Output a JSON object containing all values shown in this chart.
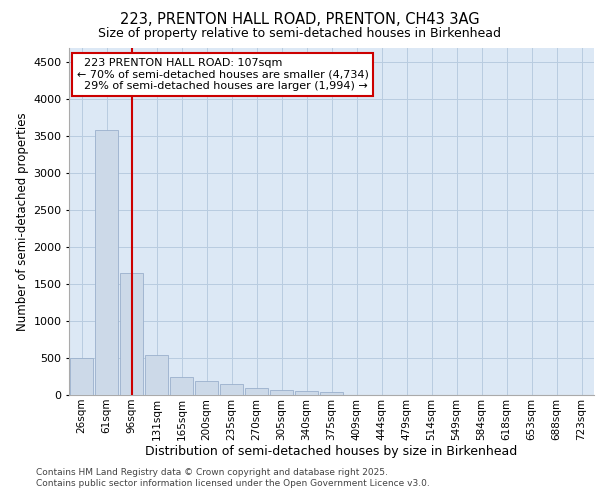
{
  "title_line1": "223, PRENTON HALL ROAD, PRENTON, CH43 3AG",
  "title_line2": "Size of property relative to semi-detached houses in Birkenhead",
  "xlabel": "Distribution of semi-detached houses by size in Birkenhead",
  "ylabel": "Number of semi-detached properties",
  "property_label": "223 PRENTON HALL ROAD: 107sqm",
  "pct_smaller": 70,
  "pct_larger": 29,
  "count_smaller": 4734,
  "count_larger": 1994,
  "bar_color": "#ccd9e8",
  "bar_edge_color": "#9ab0cc",
  "vline_color": "#cc0000",
  "annotation_box_edge_color": "#cc0000",
  "plot_bg_color": "#dce8f5",
  "fig_bg_color": "#ffffff",
  "grid_color": "#b8cce0",
  "categories": [
    "26sqm",
    "61sqm",
    "96sqm",
    "131sqm",
    "165sqm",
    "200sqm",
    "235sqm",
    "270sqm",
    "305sqm",
    "340sqm",
    "375sqm",
    "409sqm",
    "444sqm",
    "479sqm",
    "514sqm",
    "549sqm",
    "584sqm",
    "618sqm",
    "653sqm",
    "688sqm",
    "723sqm"
  ],
  "values": [
    500,
    3580,
    1650,
    540,
    240,
    190,
    150,
    95,
    65,
    55,
    40,
    0,
    0,
    0,
    0,
    0,
    0,
    0,
    0,
    0,
    0
  ],
  "vline_x_idx": 2.0,
  "ylim": [
    0,
    4700
  ],
  "yticks": [
    0,
    500,
    1000,
    1500,
    2000,
    2500,
    3000,
    3500,
    4000,
    4500
  ],
  "footer_line1": "Contains HM Land Registry data © Crown copyright and database right 2025.",
  "footer_line2": "Contains public sector information licensed under the Open Government Licence v3.0."
}
